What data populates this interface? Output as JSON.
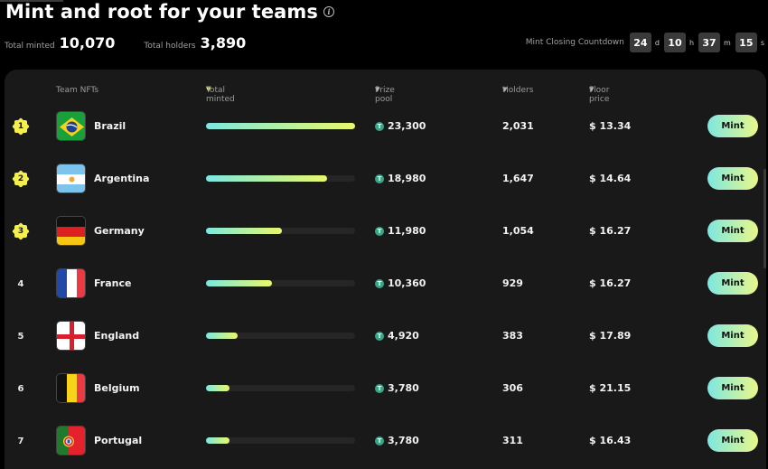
{
  "header": {
    "title": "Mint and root for your teams",
    "info_icon": "info-icon",
    "total_minted_label": "Total minted",
    "total_minted_value": "10,070",
    "total_holders_label": "Total holders",
    "total_holders_value": "3,890"
  },
  "countdown": {
    "label": "Mint Closing Countdown",
    "days": "24",
    "days_unit": "d",
    "hours": "10",
    "hours_unit": "h",
    "minutes": "37",
    "minutes_unit": "m",
    "seconds": "15",
    "seconds_unit": "s"
  },
  "table": {
    "columns": {
      "team": "Team NFTs",
      "total_minted": "Total minted",
      "prize_pool": "Prize pool",
      "holders": "Holders",
      "floor_price": "Floor price"
    },
    "sorted_by": "total_minted",
    "accent_color": "#e8e94b",
    "rows": [
      {
        "rank": "1",
        "badge": true,
        "team": "Brazil",
        "flag": "brazil",
        "minted_pct": 100,
        "prize_pool": "23,300",
        "holders": "2,031",
        "floor_price": "$ 13.34",
        "action": "Mint"
      },
      {
        "rank": "2",
        "badge": true,
        "team": "Argentina",
        "flag": "argentina",
        "minted_pct": 81,
        "prize_pool": "18,980",
        "holders": "1,647",
        "floor_price": "$ 14.64",
        "action": "Mint"
      },
      {
        "rank": "3",
        "badge": true,
        "team": "Germany",
        "flag": "germany",
        "minted_pct": 51,
        "prize_pool": "11,980",
        "holders": "1,054",
        "floor_price": "$ 16.27",
        "action": "Mint"
      },
      {
        "rank": "4",
        "badge": false,
        "team": "France",
        "flag": "france",
        "minted_pct": 44,
        "prize_pool": "10,360",
        "holders": "929",
        "floor_price": "$ 16.27",
        "action": "Mint"
      },
      {
        "rank": "5",
        "badge": false,
        "team": "England",
        "flag": "england",
        "minted_pct": 21,
        "prize_pool": "4,920",
        "holders": "383",
        "floor_price": "$ 17.89",
        "action": "Mint"
      },
      {
        "rank": "6",
        "badge": false,
        "team": "Belgium",
        "flag": "belgium",
        "minted_pct": 16,
        "prize_pool": "3,780",
        "holders": "306",
        "floor_price": "$ 21.15",
        "action": "Mint"
      },
      {
        "rank": "7",
        "badge": false,
        "team": "Portugal",
        "flag": "portugal",
        "minted_pct": 16,
        "prize_pool": "3,780",
        "holders": "311",
        "floor_price": "$ 16.43",
        "action": "Mint"
      }
    ]
  }
}
